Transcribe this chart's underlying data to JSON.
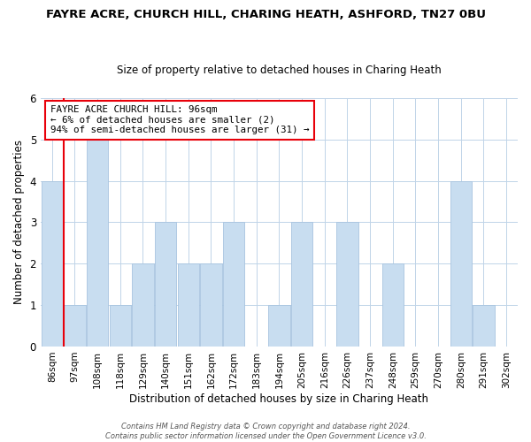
{
  "title": "FAYRE ACRE, CHURCH HILL, CHARING HEATH, ASHFORD, TN27 0BU",
  "subtitle": "Size of property relative to detached houses in Charing Heath",
  "xlabel": "Distribution of detached houses by size in Charing Heath",
  "ylabel": "Number of detached properties",
  "bin_labels": [
    "86sqm",
    "97sqm",
    "108sqm",
    "118sqm",
    "129sqm",
    "140sqm",
    "151sqm",
    "162sqm",
    "172sqm",
    "183sqm",
    "194sqm",
    "205sqm",
    "216sqm",
    "226sqm",
    "237sqm",
    "248sqm",
    "259sqm",
    "270sqm",
    "280sqm",
    "291sqm",
    "302sqm"
  ],
  "bar_heights": [
    4,
    1,
    5,
    1,
    2,
    3,
    2,
    2,
    3,
    0,
    1,
    3,
    0,
    3,
    0,
    2,
    0,
    0,
    4,
    1,
    0
  ],
  "bar_color": "#c8ddf0",
  "bar_edge_color": "#a8c4e0",
  "highlight_bar_index": 1,
  "highlight_edge_color": "#e8000a",
  "ylim": [
    0,
    6
  ],
  "yticks": [
    0,
    1,
    2,
    3,
    4,
    5,
    6
  ],
  "annotation_text": "FAYRE ACRE CHURCH HILL: 96sqm\n← 6% of detached houses are smaller (2)\n94% of semi-detached houses are larger (31) →",
  "annotation_box_edge_color": "#e8000a",
  "footer_text": "Contains HM Land Registry data © Crown copyright and database right 2024.\nContains public sector information licensed under the Open Government Licence v3.0.",
  "background_color": "#ffffff",
  "grid_color": "#c0d4e8",
  "title_fontsize": 9.5,
  "subtitle_fontsize": 8.5
}
